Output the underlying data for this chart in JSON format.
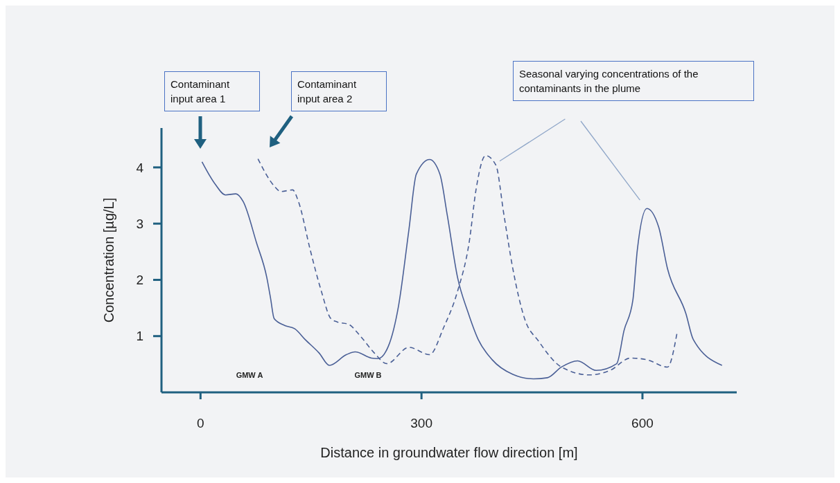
{
  "chart_data": {
    "type": "line",
    "xlabel": "Distance in groundwater flow direction [m]",
    "ylabel": "Concentration [µg/L]",
    "xlim": [
      -53,
      728
    ],
    "ylim": [
      0,
      4.7
    ],
    "xticks": [
      0,
      300,
      600
    ],
    "yticks": [
      1,
      2,
      3,
      4
    ],
    "marker": "none",
    "series": [
      {
        "color": "#4a5f96",
        "line_style": "solid",
        "x": [
          2,
          20,
          34,
          48,
          58,
          76,
          90,
          95,
          100,
          114,
          128,
          142,
          161,
          175,
          198,
          210,
          232,
          241,
          255,
          269,
          283,
          293,
          311,
          325,
          335,
          349,
          363,
          377,
          396,
          424,
          452,
          471,
          490,
          512,
          537,
          565,
          575,
          587,
          593,
          606,
          622,
          634,
          659,
          669,
          708
        ],
        "values": [
          4.1,
          3.7,
          3.51,
          3.53,
          3.39,
          2.66,
          2.04,
          1.68,
          1.31,
          1.19,
          1.13,
          0.94,
          0.7,
          0.48,
          0.67,
          0.72,
          0.61,
          0.6,
          0.82,
          1.55,
          2.9,
          3.88,
          4.14,
          3.88,
          3.15,
          2.04,
          1.43,
          0.94,
          0.58,
          0.32,
          0.24,
          0.26,
          0.45,
          0.56,
          0.39,
          0.51,
          1.1,
          1.64,
          2.53,
          3.27,
          2.94,
          2.2,
          1.4,
          0.94,
          0.48
        ]
      },
      {
        "color": "#4a5f96",
        "line_style": "dashed",
        "x": [
          78,
          100,
          109,
          125,
          133,
          149,
          164,
          177,
          186,
          201,
          217,
          236,
          253,
          283,
          311,
          330,
          349,
          365,
          374,
          387,
          401,
          412,
          424,
          440,
          459,
          490,
          528,
          556,
          584,
          606,
          634,
          647
        ],
        "values": [
          4.15,
          3.67,
          3.57,
          3.6,
          3.39,
          2.53,
          1.8,
          1.31,
          1.25,
          1.21,
          1.0,
          0.7,
          0.51,
          0.8,
          0.67,
          1.15,
          1.8,
          2.69,
          3.6,
          4.21,
          4.04,
          3.15,
          2.2,
          1.31,
          0.91,
          0.45,
          0.31,
          0.39,
          0.61,
          0.58,
          0.45,
          1.06
        ]
      }
    ],
    "annotations": [
      "Contaminant input area 1",
      "Contaminant input area 2",
      "Seasonal varying concentrations of the contaminants in the plume",
      "GMW A",
      "GMW B"
    ]
  }
}
